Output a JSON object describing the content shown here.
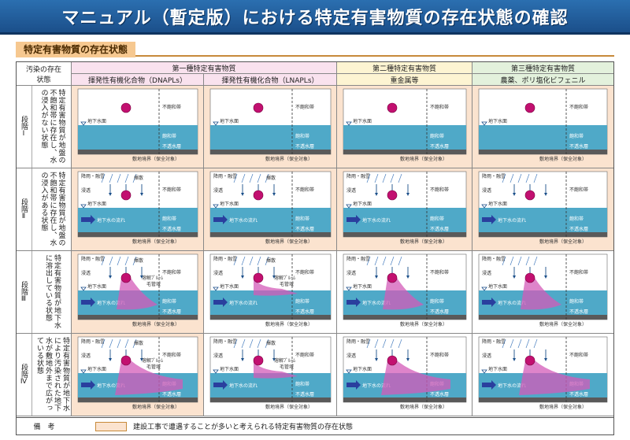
{
  "title": "マニュアル（暫定版）における特定有害物質の存在状態の確認",
  "section": "特定有害物質の存在状態",
  "header": {
    "row_col_label": "汚染の存在状態",
    "class1": "第一種特定有害物質",
    "class2": "第二種特定有害物質",
    "class3": "第三種特定有害物質",
    "col1": "揮発性有機化合物（DNAPLs）",
    "col2": "揮発性有機化合物（LNAPLs）",
    "col3": "重金属等",
    "col4": "農薬、ポリ塩化ビフェニル"
  },
  "stages": [
    {
      "label": "段階Ⅰ",
      "desc": "特定有害物質が地盤の不飽和帯に存在し、水の浸入がない状態"
    },
    {
      "label": "段階Ⅱ",
      "desc": "特定有害物質が地盤の不飽和帯に存在し、水の浸入がある状態"
    },
    {
      "label": "段階Ⅲ",
      "desc": "特定有害物質が地下水に溶出している状態"
    },
    {
      "label": "段階Ⅳ",
      "desc": "特定有害物質が地下水により汚染された地下水が敷地外まで広がっている状態"
    }
  ],
  "diagram_labels": {
    "groundwater_surface": "地下水面",
    "unsaturated": "不飽和帯",
    "saturated": "飽和帯",
    "aquitard": "不透水層",
    "boundary": "敷地境界",
    "protected": "（保全対象）",
    "rain": "降雨・融雪",
    "infiltration": "浸透",
    "volatilization": "揮散",
    "gw_flow": "地下水の流れ",
    "dissolved": "溶解ﾌﾟﾙｰﾑ",
    "capillary": "毛管域"
  },
  "footer": {
    "label": "備　考",
    "legend": "建設工事で遭遇することが多いと考えられる特定有害物質の存在状態"
  },
  "colors": {
    "banner": "#1b4f8a",
    "water": "#4fa9c8",
    "plume": "#d35bb8",
    "sand": "#fbe3cf",
    "class1": "#f9e2ee",
    "class2": "#fdf4d2",
    "class3": "#e3f1dc"
  }
}
